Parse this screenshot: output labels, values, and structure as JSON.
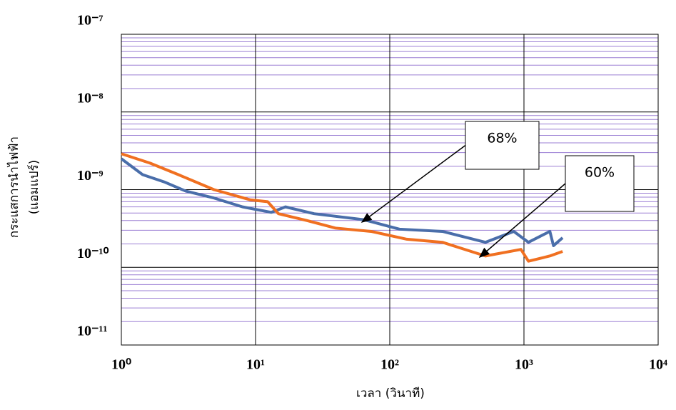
{
  "chart_data": {
    "type": "line",
    "x_label": "เวลา (วินาที)",
    "y_label": [
      "กระแสการนำไฟฟ้า",
      "(แอมแปร์)"
    ],
    "xscale": "log",
    "yscale": "log",
    "xlim": [
      1,
      10000
    ],
    "ylim": [
      1e-11,
      1e-07
    ],
    "xticks": [
      {
        "value": 1,
        "label": "10⁰"
      },
      {
        "value": 10,
        "label": "10¹"
      },
      {
        "value": 100,
        "label": "10²"
      },
      {
        "value": 1000,
        "label": "10³"
      },
      {
        "value": 10000,
        "label": "10⁴"
      }
    ],
    "yticks": [
      {
        "value": 1e-11,
        "label": "10⁻¹¹"
      },
      {
        "value": 1e-10,
        "label": "10⁻¹⁰"
      },
      {
        "value": 1e-09,
        "label": "10⁻⁹"
      },
      {
        "value": 1e-08,
        "label": "10⁻⁸"
      },
      {
        "value": 1e-07,
        "label": "10⁻⁷"
      }
    ],
    "grid": true,
    "minor_grid_color": "#9b7fd4",
    "series": [
      {
        "color": "#4a6eaa",
        "x": [
          1,
          1.44,
          2.08,
          3.01,
          4.9,
          8.0,
          13.1,
          16.7,
          27.3,
          64,
          118,
          247,
          516,
          840,
          1080,
          1560,
          1660,
          1940
        ],
        "values": [
          2.5e-09,
          1.56e-09,
          1.26e-09,
          9.6e-10,
          7.8e-10,
          6e-10,
          5.1e-10,
          6e-10,
          4.9e-10,
          4.1e-10,
          3.1e-10,
          2.9e-10,
          2.1e-10,
          2.9e-10,
          2.1e-10,
          2.9e-10,
          1.9e-10,
          2.4e-10
        ]
      },
      {
        "color": "#f07021",
        "x": [
          1,
          1.63,
          2.66,
          4.9,
          9.1,
          12.3,
          14.8,
          24.2,
          39.4,
          72.6,
          134,
          247,
          516,
          950,
          1080,
          1560,
          1940
        ],
        "values": [
          2.9e-09,
          2.2e-09,
          1.56e-09,
          1e-09,
          7.4e-10,
          7e-10,
          4.9e-10,
          4e-10,
          3.2e-10,
          2.9e-10,
          2.3e-10,
          2.1e-10,
          1.4e-10,
          1.7e-10,
          1.2e-10,
          1.4e-10,
          1.6e-10
        ]
      }
    ],
    "annotations": [
      "68%",
      "60%"
    ]
  }
}
